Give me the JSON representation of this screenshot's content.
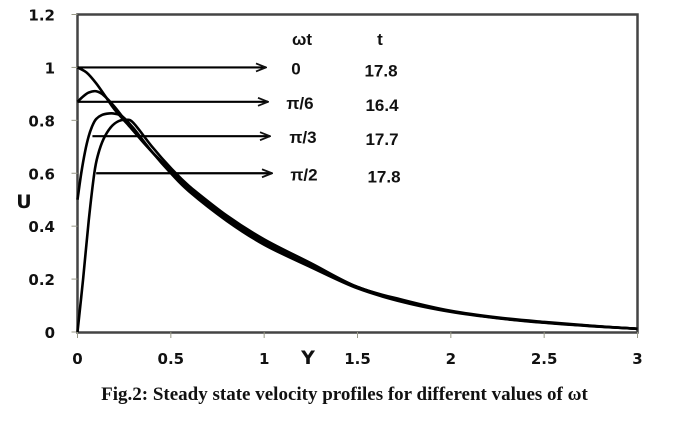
{
  "chart_data": {
    "type": "line",
    "title": "",
    "caption": "Fig.2: Steady state velocity profiles for different values of ωt",
    "xlabel": "Y",
    "ylabel": "U",
    "xlim": [
      0,
      3
    ],
    "ylim": [
      0,
      1.2
    ],
    "xticks": [
      0,
      0.5,
      1,
      1.5,
      2,
      2.5,
      3
    ],
    "xtick_labels": [
      "0",
      "0.5",
      "1",
      "1.5",
      "2",
      "2.5",
      "3"
    ],
    "yticks": [
      0,
      0.2,
      0.4,
      0.6,
      0.8,
      1,
      1.2
    ],
    "ytick_labels": [
      "0",
      "0.2",
      "0.4",
      "0.6",
      "0.8",
      "1",
      "1.2"
    ],
    "grid": false,
    "legend": {
      "placement": "top-center",
      "headers": [
        "ωt",
        "t"
      ],
      "entries": [
        {
          "wt": "0",
          "t": "17.8",
          "arrow_y": 1.0,
          "arrow_x_start": 0.0
        },
        {
          "wt": "π/6",
          "t": "16.4",
          "arrow_y": 0.87,
          "arrow_x_start": 0.0
        },
        {
          "wt": "π/3",
          "t": "17.7",
          "arrow_y": 0.74,
          "arrow_x_start": 0.08
        },
        {
          "wt": "π/2",
          "t": "17.8",
          "arrow_y": 0.6,
          "arrow_x_start": 0.1
        }
      ]
    },
    "series": [
      {
        "name": "ωt = 0",
        "x": [
          0,
          0.05,
          0.1,
          0.15,
          0.2,
          0.3,
          0.4,
          0.5,
          0.6,
          0.8,
          1.0,
          1.25,
          1.5,
          1.75,
          2.0,
          2.25,
          2.5,
          2.75,
          3.0
        ],
        "y": [
          1.0,
          0.98,
          0.94,
          0.89,
          0.84,
          0.76,
          0.68,
          0.61,
          0.55,
          0.44,
          0.35,
          0.26,
          0.17,
          0.12,
          0.08,
          0.055,
          0.038,
          0.024,
          0.012
        ]
      },
      {
        "name": "ωt = π/6",
        "x": [
          0,
          0.03,
          0.06,
          0.1,
          0.14,
          0.2,
          0.3,
          0.4,
          0.5,
          0.6,
          0.8,
          1.0,
          1.25,
          1.5,
          1.75,
          2.0,
          2.25,
          2.5,
          2.75,
          3.0
        ],
        "y": [
          0.87,
          0.89,
          0.905,
          0.91,
          0.895,
          0.85,
          0.76,
          0.68,
          0.61,
          0.54,
          0.43,
          0.34,
          0.25,
          0.17,
          0.115,
          0.078,
          0.053,
          0.036,
          0.023,
          0.012
        ]
      },
      {
        "name": "ωt = π/3",
        "x": [
          0,
          0.02,
          0.04,
          0.06,
          0.08,
          0.1,
          0.13,
          0.17,
          0.2,
          0.24,
          0.3,
          0.4,
          0.5,
          0.6,
          0.8,
          1.0,
          1.25,
          1.5,
          1.75,
          2.0,
          2.25,
          2.5,
          2.75,
          3.0
        ],
        "y": [
          0.5,
          0.6,
          0.68,
          0.74,
          0.78,
          0.805,
          0.82,
          0.826,
          0.825,
          0.815,
          0.77,
          0.68,
          0.6,
          0.53,
          0.42,
          0.33,
          0.245,
          0.165,
          0.112,
          0.076,
          0.052,
          0.035,
          0.022,
          0.012
        ]
      },
      {
        "name": "ωt = π/2",
        "x": [
          0,
          0.03,
          0.06,
          0.09,
          0.11,
          0.14,
          0.18,
          0.22,
          0.26,
          0.3,
          0.4,
          0.5,
          0.6,
          0.8,
          1.0,
          1.25,
          1.5,
          1.75,
          2.0,
          2.25,
          2.5,
          2.75,
          3.0
        ],
        "y": [
          0,
          0.2,
          0.42,
          0.6,
          0.67,
          0.73,
          0.775,
          0.797,
          0.802,
          0.79,
          0.7,
          0.62,
          0.55,
          0.43,
          0.34,
          0.25,
          0.17,
          0.115,
          0.078,
          0.053,
          0.036,
          0.023,
          0.012
        ]
      }
    ]
  }
}
